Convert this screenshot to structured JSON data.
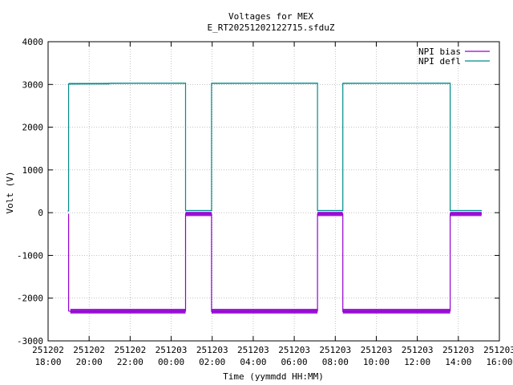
{
  "chart_data": {
    "type": "line",
    "title": "Voltages for MEX",
    "subtitle": "E_RT20251202122715.sfduZ",
    "xlabel": "Time (yymmdd HH:MM)",
    "ylabel": "Volt (V)",
    "xlim": [
      "251202 18:00",
      "251203 16:00"
    ],
    "ylim": [
      -3000,
      4000
    ],
    "grid": true,
    "legend_position": "top-right",
    "x_ticks": [
      {
        "date": "251202",
        "time": "18:00",
        "hour": 0
      },
      {
        "date": "251202",
        "time": "20:00",
        "hour": 2
      },
      {
        "date": "251202",
        "time": "22:00",
        "hour": 4
      },
      {
        "date": "251203",
        "time": "00:00",
        "hour": 6
      },
      {
        "date": "251203",
        "time": "02:00",
        "hour": 8
      },
      {
        "date": "251203",
        "time": "04:00",
        "hour": 10
      },
      {
        "date": "251203",
        "time": "06:00",
        "hour": 12
      },
      {
        "date": "251203",
        "time": "08:00",
        "hour": 14
      },
      {
        "date": "251203",
        "time": "10:00",
        "hour": 16
      },
      {
        "date": "251203",
        "time": "12:00",
        "hour": 18
      },
      {
        "date": "251203",
        "time": "14:00",
        "hour": 20
      },
      {
        "date": "251203",
        "time": "16:00",
        "hour": 22
      }
    ],
    "y_ticks": [
      4000,
      3000,
      2000,
      1000,
      0,
      -1000,
      -2000,
      -3000
    ],
    "series": [
      {
        "name": "NPI bias",
        "color": "#9400d3",
        "band_width": 100,
        "x": [
          "251202 19:00",
          "251202 19:00",
          "251202 19:05",
          "251203 00:42",
          "251203 00:42",
          "251203 01:58",
          "251203 01:58",
          "251203 07:08",
          "251203 07:08",
          "251203 08:22",
          "251203 08:22",
          "251203 13:36",
          "251203 13:36",
          "251203 15:08"
        ],
        "values": [
          -30,
          -2300,
          -2310,
          -2300,
          -30,
          -30,
          -2310,
          -2300,
          -30,
          -30,
          -2310,
          -2300,
          -30,
          -30
        ]
      },
      {
        "name": "NPI defl",
        "color": "#008b8b",
        "band_width": 20,
        "x": [
          "251202 18:58",
          "251202 19:00",
          "251202 19:00",
          "251202 21:00",
          "251203 00:42",
          "251203 00:42",
          "251203 01:58",
          "251203 01:58",
          "251203 07:08",
          "251203 07:08",
          "251203 08:22",
          "251203 08:22",
          "251203 13:36",
          "251203 13:36",
          "251203 15:08"
        ],
        "values": [
          40,
          40,
          3010,
          3025,
          3030,
          50,
          50,
          3025,
          3030,
          50,
          50,
          3025,
          3030,
          50,
          50
        ]
      }
    ]
  }
}
